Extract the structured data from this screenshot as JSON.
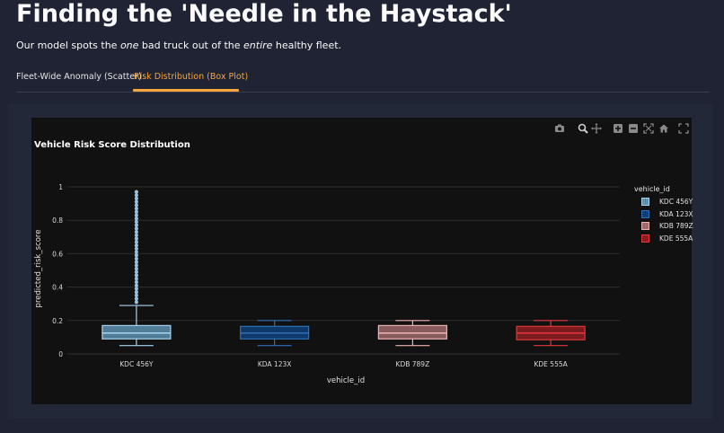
{
  "page": {
    "title": "Finding the 'Needle in the Haystack'",
    "subtitle_pre": "Our model spots the ",
    "subtitle_em1": "one",
    "subtitle_mid": " bad truck out of the ",
    "subtitle_em2": "entire",
    "subtitle_post": " healthy fleet."
  },
  "tabs": [
    {
      "label": "Fleet-Wide Anomaly (Scatter)",
      "active": false
    },
    {
      "label": "Risk Distribution (Box Plot)",
      "active": true
    }
  ],
  "colors": {
    "accent": "#f7a53c",
    "background": "#1f2333",
    "chart_bg": "#111111"
  },
  "modebar": {
    "icons": [
      "camera-icon",
      "zoom-icon",
      "pan-icon",
      "zoom-in-icon",
      "zoom-out-icon",
      "autoscale-icon",
      "home-icon",
      "fullscreen-icon"
    ]
  },
  "chart_data": {
    "type": "box",
    "title": "Vehicle Risk Score Distribution",
    "xlabel": "vehicle_id",
    "ylabel": "predicted_risk_score",
    "ylim": [
      0,
      1
    ],
    "yticks": [
      "0",
      "0.2",
      "0.4",
      "0.6",
      "0.8",
      "1"
    ],
    "grid": true,
    "legend_title": "vehicle_id",
    "legend_position": "right",
    "categories": [
      "KDC 456Y",
      "KDA 123X",
      "KDB 789Z",
      "KDE 555A"
    ],
    "series": [
      {
        "name": "KDC 456Y",
        "color": "#a8d4ee",
        "fill": "#5d8fb0",
        "min": 0.05,
        "q1": 0.09,
        "median": 0.125,
        "q3": 0.17,
        "max": 0.29,
        "outliers": [
          0.31,
          0.33,
          0.35,
          0.37,
          0.39,
          0.41,
          0.43,
          0.45,
          0.47,
          0.49,
          0.51,
          0.53,
          0.55,
          0.57,
          0.59,
          0.61,
          0.63,
          0.65,
          0.67,
          0.69,
          0.71,
          0.73,
          0.75,
          0.77,
          0.79,
          0.81,
          0.83,
          0.85,
          0.87,
          0.89,
          0.91,
          0.93,
          0.95,
          0.97
        ]
      },
      {
        "name": "KDA 123X",
        "color": "#2f6fb5",
        "fill": "#0f3f7a",
        "min": 0.05,
        "q1": 0.09,
        "median": 0.125,
        "q3": 0.165,
        "max": 0.2,
        "outliers": []
      },
      {
        "name": "KDB 789Z",
        "color": "#f0b3b3",
        "fill": "#9e6a6a",
        "min": 0.05,
        "q1": 0.09,
        "median": 0.125,
        "q3": 0.17,
        "max": 0.2,
        "outliers": []
      },
      {
        "name": "KDE 555A",
        "color": "#e0383b",
        "fill": "#8e1d21",
        "min": 0.05,
        "q1": 0.085,
        "median": 0.125,
        "q3": 0.165,
        "max": 0.2,
        "outliers": []
      }
    ]
  }
}
